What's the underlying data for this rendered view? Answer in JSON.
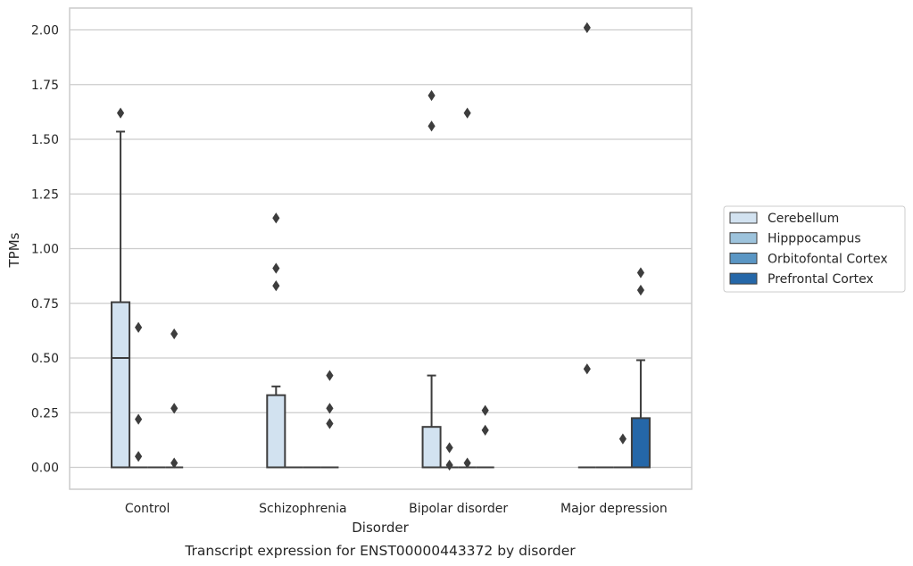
{
  "chart_data": {
    "type": "boxplot",
    "xlabel": "Disorder",
    "ylabel": "TPMs",
    "caption": "Transcript expression for ENST00000443372 by disorder",
    "categories": [
      "Control",
      "Schizophrenia",
      "Bipolar disorder",
      "Major depression"
    ],
    "ylim": [
      -0.1,
      2.1
    ],
    "yticks": [
      "0.00",
      "0.25",
      "0.50",
      "0.75",
      "1.00",
      "1.25",
      "1.50",
      "1.75",
      "2.00"
    ],
    "grid": true,
    "legend_position": "right",
    "series": [
      {
        "name": "Cerebellum",
        "color": "#d2e2f0",
        "boxes": [
          {
            "q1": 0.0,
            "median": 0.5,
            "q3": 0.755,
            "whisker_low": 0.0,
            "whisker_high": 1.535,
            "outliers": [
              1.62
            ]
          },
          {
            "q1": 0.0,
            "median": 0.0,
            "q3": 0.33,
            "whisker_low": 0.0,
            "whisker_high": 0.37,
            "outliers": [
              0.83,
              0.91,
              1.14
            ]
          },
          {
            "q1": 0.0,
            "median": 0.0,
            "q3": 0.185,
            "whisker_low": 0.0,
            "whisker_high": 0.42,
            "outliers": [
              1.56,
              1.7
            ]
          },
          {
            "q1": 0.0,
            "median": 0.0,
            "q3": 0.0,
            "whisker_low": 0.0,
            "whisker_high": 0.0,
            "outliers": [
              0.45,
              2.01
            ]
          }
        ]
      },
      {
        "name": "Hipppocampus",
        "color": "#9dc3dc",
        "boxes": [
          {
            "q1": 0.0,
            "median": 0.0,
            "q3": 0.0,
            "whisker_low": 0.0,
            "whisker_high": 0.0,
            "outliers": [
              0.22,
              0.05,
              0.64
            ]
          },
          {
            "q1": 0.0,
            "median": 0.0,
            "q3": 0.0,
            "whisker_low": 0.0,
            "whisker_high": 0.0,
            "outliers": []
          },
          {
            "q1": 0.0,
            "median": 0.0,
            "q3": 0.0,
            "whisker_low": 0.0,
            "whisker_high": 0.0,
            "outliers": [
              0.01,
              0.09
            ]
          },
          {
            "q1": 0.0,
            "median": 0.0,
            "q3": 0.0,
            "whisker_low": 0.0,
            "whisker_high": 0.0,
            "outliers": []
          }
        ]
      },
      {
        "name": "Orbitofontal Cortex",
        "color": "#5a96c4",
        "boxes": [
          {
            "q1": 0.0,
            "median": 0.0,
            "q3": 0.0,
            "whisker_low": 0.0,
            "whisker_high": 0.0,
            "outliers": []
          },
          {
            "q1": 0.0,
            "median": 0.0,
            "q3": 0.0,
            "whisker_low": 0.0,
            "whisker_high": 0.0,
            "outliers": []
          },
          {
            "q1": 0.0,
            "median": 0.0,
            "q3": 0.0,
            "whisker_low": 0.0,
            "whisker_high": 0.0,
            "outliers": [
              0.02,
              1.62
            ]
          },
          {
            "q1": 0.0,
            "median": 0.0,
            "q3": 0.0,
            "whisker_low": 0.0,
            "whisker_high": 0.0,
            "outliers": [
              0.13
            ]
          }
        ]
      },
      {
        "name": "Prefrontal Cortex",
        "color": "#2567a8",
        "boxes": [
          {
            "q1": 0.0,
            "median": 0.0,
            "q3": 0.0,
            "whisker_low": 0.0,
            "whisker_high": 0.0,
            "outliers": [
              0.02,
              0.27,
              0.61
            ]
          },
          {
            "q1": 0.0,
            "median": 0.0,
            "q3": 0.0,
            "whisker_low": 0.0,
            "whisker_high": 0.0,
            "outliers": [
              0.2,
              0.27,
              0.42
            ]
          },
          {
            "q1": 0.0,
            "median": 0.0,
            "q3": 0.0,
            "whisker_low": 0.0,
            "whisker_high": 0.0,
            "outliers": [
              0.17,
              0.26
            ]
          },
          {
            "q1": 0.0,
            "median": 0.0,
            "q3": 0.225,
            "whisker_low": 0.0,
            "whisker_high": 0.49,
            "outliers": [
              0.81,
              0.89
            ]
          }
        ]
      }
    ]
  }
}
